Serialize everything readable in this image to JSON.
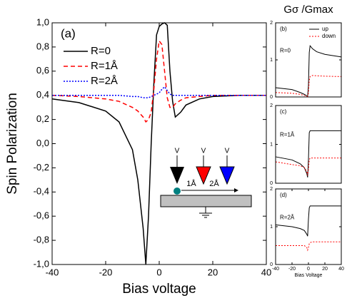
{
  "chart_data": [
    {
      "type": "line",
      "label": "(a)",
      "xlabel": "Bias voltage",
      "ylabel": "Spin Polarization",
      "xlim": [
        -40,
        40
      ],
      "xticks": [
        -40,
        -20,
        0,
        20,
        40
      ],
      "ylim": [
        -1.0,
        1.0
      ],
      "yticks": [
        {
          "value": -1.0,
          "label": "-1,0"
        },
        {
          "value": -0.8,
          "label": "-0,8"
        },
        {
          "value": -0.6,
          "label": "-0,6"
        },
        {
          "value": -0.4,
          "label": "-0,4"
        },
        {
          "value": -0.2,
          "label": "-0,2"
        },
        {
          "value": 0.0,
          "label": "0,0"
        },
        {
          "value": 0.2,
          "label": "0,2"
        },
        {
          "value": 0.4,
          "label": "0,4"
        },
        {
          "value": 0.6,
          "label": "0,6"
        },
        {
          "value": 0.8,
          "label": "0,8"
        },
        {
          "value": 1.0,
          "label": "1,0"
        }
      ],
      "legend": "upper left",
      "annotations": [
        "V",
        "V",
        "V",
        "1Å",
        "2Å"
      ],
      "x": [
        -40,
        -30,
        -20,
        -15,
        -10,
        -8,
        -6,
        -5,
        -4,
        -3,
        -2,
        -1,
        0,
        1,
        2,
        3,
        4,
        5,
        6,
        8,
        10,
        15,
        20,
        30,
        40
      ],
      "series": [
        {
          "name": "R=0",
          "color": "#000000",
          "linestyle": "solid",
          "values": [
            0.37,
            0.34,
            0.27,
            0.18,
            -0.05,
            -0.3,
            -0.7,
            -1.0,
            -0.6,
            0.0,
            0.5,
            0.9,
            0.97,
            0.99,
            1.0,
            0.98,
            0.6,
            0.35,
            0.22,
            0.26,
            0.32,
            0.37,
            0.39,
            0.4,
            0.4
          ]
        },
        {
          "name": "R=1Å",
          "color": "#ff0000",
          "linestyle": "dashed",
          "values": [
            0.4,
            0.39,
            0.37,
            0.35,
            0.3,
            0.27,
            0.22,
            0.18,
            0.2,
            0.26,
            0.45,
            0.7,
            0.85,
            0.82,
            0.6,
            0.38,
            0.3,
            0.3,
            0.33,
            0.36,
            0.38,
            0.39,
            0.4,
            0.4,
            0.4
          ]
        },
        {
          "name": "R=2Å",
          "color": "#0000ff",
          "linestyle": "dotted",
          "values": [
            0.4,
            0.4,
            0.4,
            0.4,
            0.39,
            0.39,
            0.38,
            0.38,
            0.38,
            0.39,
            0.4,
            0.41,
            0.42,
            0.45,
            0.47,
            0.44,
            0.41,
            0.4,
            0.4,
            0.4,
            0.4,
            0.4,
            0.4,
            0.4,
            0.4
          ]
        }
      ]
    },
    {
      "type": "line",
      "title": "Gσ /Gmax",
      "label": "(b)",
      "annotation": "R=0",
      "legend": "upper right",
      "xlim": [
        -40,
        40
      ],
      "ylim": [
        0,
        2
      ],
      "yticks": [
        0,
        1,
        2
      ],
      "x": [
        -40,
        -20,
        -10,
        -5,
        -2,
        -1,
        0,
        1,
        2,
        5,
        10,
        20,
        40
      ],
      "series": [
        {
          "name": "up",
          "color": "#000000",
          "linestyle": "solid",
          "values": [
            0.25,
            0.2,
            0.12,
            0.07,
            0.03,
            0.02,
            0.3,
            1.2,
            1.38,
            1.3,
            1.22,
            1.15,
            1.08
          ]
        },
        {
          "name": "down",
          "color": "#ff0000",
          "linestyle": "dotted",
          "values": [
            0.12,
            0.1,
            0.07,
            0.04,
            0.02,
            0.02,
            0.1,
            0.45,
            0.55,
            0.58,
            0.57,
            0.56,
            0.55
          ]
        }
      ]
    },
    {
      "type": "line",
      "label": "(c)",
      "annotation": "R=1Å",
      "xlim": [
        -40,
        40
      ],
      "ylim": [
        0,
        2
      ],
      "yticks": [
        0,
        1,
        2
      ],
      "x": [
        -40,
        -20,
        -10,
        -5,
        -2,
        -1,
        0,
        1,
        2,
        5,
        10,
        20,
        40
      ],
      "series": [
        {
          "color": "#000000",
          "linestyle": "solid",
          "values": [
            0.68,
            0.6,
            0.5,
            0.4,
            0.25,
            0.15,
            0.6,
            1.3,
            1.35,
            1.35,
            1.35,
            1.35,
            1.35
          ]
        },
        {
          "color": "#ff0000",
          "linestyle": "dotted",
          "values": [
            0.55,
            0.48,
            0.45,
            0.4,
            0.3,
            0.2,
            0.35,
            0.6,
            0.65,
            0.65,
            0.65,
            0.65,
            0.65
          ]
        }
      ]
    },
    {
      "type": "line",
      "label": "(d)",
      "annotation": "R=2Å",
      "xlabel": "Bias Voltage",
      "xlim": [
        -40,
        40
      ],
      "xticks": [
        -40,
        -20,
        0,
        20,
        40
      ],
      "ylim": [
        0,
        2
      ],
      "yticks": [
        0,
        1,
        2
      ],
      "x": [
        -40,
        -20,
        -10,
        -5,
        -2,
        -1,
        0,
        1,
        2,
        5,
        10,
        20,
        40
      ],
      "series": [
        {
          "color": "#000000",
          "linestyle": "solid",
          "values": [
            1.05,
            1.0,
            0.95,
            0.9,
            0.8,
            0.75,
            1.2,
            1.5,
            1.55,
            1.55,
            1.55,
            1.55,
            1.55
          ]
        },
        {
          "color": "#ff0000",
          "linestyle": "dotted",
          "values": [
            0.5,
            0.5,
            0.5,
            0.5,
            0.45,
            0.38,
            0.45,
            0.55,
            0.58,
            0.6,
            0.6,
            0.6,
            0.6
          ]
        }
      ]
    }
  ]
}
